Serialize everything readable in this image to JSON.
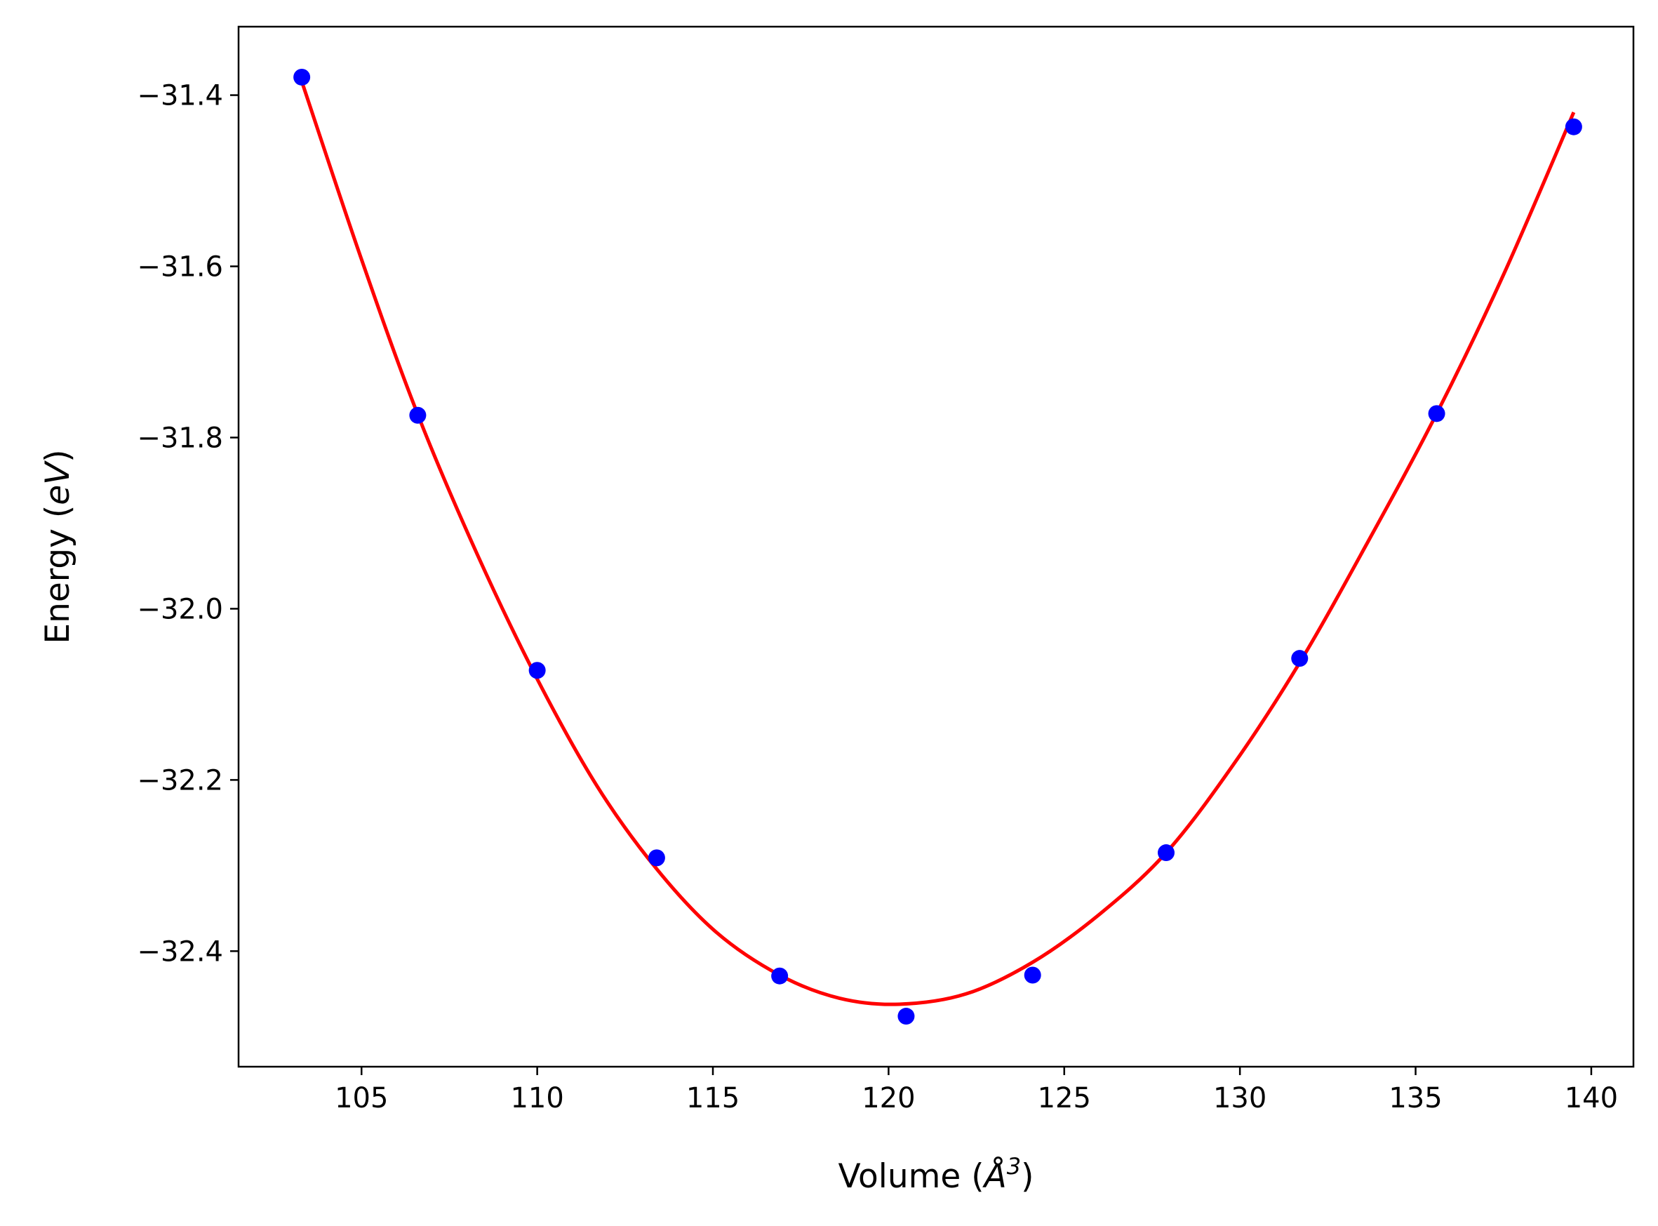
{
  "chart_data": {
    "type": "scatter",
    "xlabel": {
      "prefix": "Volume (",
      "unit_main": "Å",
      "unit_sup": "3",
      "suffix": ")"
    },
    "ylabel": {
      "prefix": "Energy (",
      "unit": "eV",
      "suffix": ")"
    },
    "xlim": [
      101.5,
      141.2
    ],
    "ylim": [
      -32.535,
      -31.32
    ],
    "xticks": [
      105,
      110,
      115,
      120,
      125,
      130,
      135,
      140
    ],
    "xtick_labels": [
      "105",
      "110",
      "115",
      "120",
      "125",
      "130",
      "135",
      "140"
    ],
    "yticks": [
      -31.4,
      -31.6,
      -31.8,
      -32.0,
      -32.2,
      -32.4
    ],
    "ytick_labels": [
      "−31.4",
      "−31.6",
      "−31.8",
      "−32.0",
      "−32.2",
      "−32.4"
    ],
    "grid": false,
    "legend": "none",
    "series": [
      {
        "kind": "points",
        "color": "#0000ff",
        "x": [
          103.3,
          106.6,
          110.0,
          113.4,
          116.9,
          120.5,
          124.1,
          127.9,
          131.7,
          135.6,
          139.5
        ],
        "y": [
          -31.379,
          -31.774,
          -32.072,
          -32.291,
          -32.429,
          -32.476,
          -32.428,
          -32.285,
          -32.058,
          -31.772,
          -31.437
        ]
      },
      {
        "kind": "fit-curve",
        "color": "#ff0000",
        "x": [
          103.3,
          105.0,
          106.6,
          108.3,
          110.0,
          111.7,
          113.4,
          115.1,
          116.9,
          118.6,
          120.3,
          122.2,
          124.1,
          126.0,
          127.9,
          129.8,
          131.7,
          133.6,
          135.6,
          137.5,
          139.5
        ],
        "y": [
          -31.384,
          -31.592,
          -31.773,
          -31.937,
          -32.082,
          -32.207,
          -32.304,
          -32.378,
          -32.428,
          -32.455,
          -32.462,
          -32.45,
          -32.413,
          -32.357,
          -32.285,
          -32.183,
          -32.063,
          -31.925,
          -31.772,
          -31.61,
          -31.42
        ]
      }
    ]
  }
}
